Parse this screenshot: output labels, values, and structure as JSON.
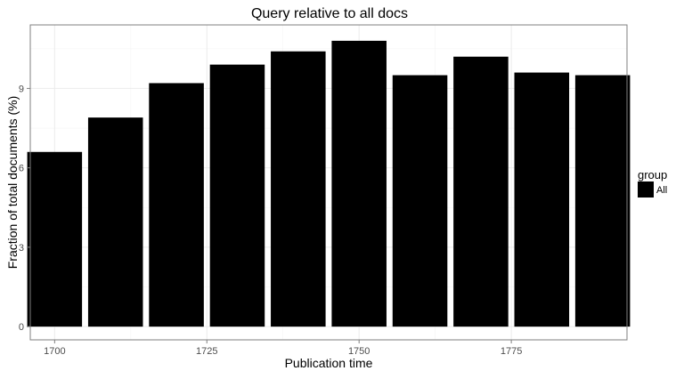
{
  "chart_data": {
    "type": "bar",
    "title": "Query relative to all docs",
    "xlabel": "Publication time",
    "ylabel": "Fraction of total documents (%)",
    "x": [
      1700,
      1710,
      1720,
      1730,
      1740,
      1750,
      1760,
      1770,
      1780,
      1790
    ],
    "bar_width": 9,
    "xlim": [
      1696,
      1794
    ],
    "xticks": [
      1700,
      1725,
      1750,
      1775
    ],
    "ylim": [
      -0.5,
      11.4
    ],
    "yticks": [
      0,
      3,
      6,
      9
    ],
    "series": [
      {
        "name": "All",
        "values": [
          6.6,
          7.9,
          9.2,
          9.9,
          10.4,
          10.8,
          9.5,
          10.2,
          9.6,
          9.5
        ],
        "color": "#000000"
      }
    ],
    "legend": {
      "title": "group",
      "position": "right",
      "entries": [
        "All"
      ]
    },
    "grid": true,
    "colors": {
      "bar": "#000000",
      "grid": "#ebebeb",
      "panel_border": "#7f7f7f",
      "background": "#ffffff"
    }
  }
}
